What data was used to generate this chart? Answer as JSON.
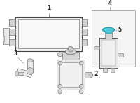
{
  "bg_color": "#ffffff",
  "line_color": "#777777",
  "dark_line": "#444444",
  "part_fill": "#e8e8e8",
  "part_fill2": "#d4d4d4",
  "highlight_color": "#4ec8d4",
  "highlight_edge": "#1a9aaa",
  "label_color": "#222222",
  "fig_width": 2.0,
  "fig_height": 1.47,
  "dpi": 100,
  "font_size": 5.5,
  "box_color": "#f5f5f5",
  "box_edge": "#aaaaaa"
}
